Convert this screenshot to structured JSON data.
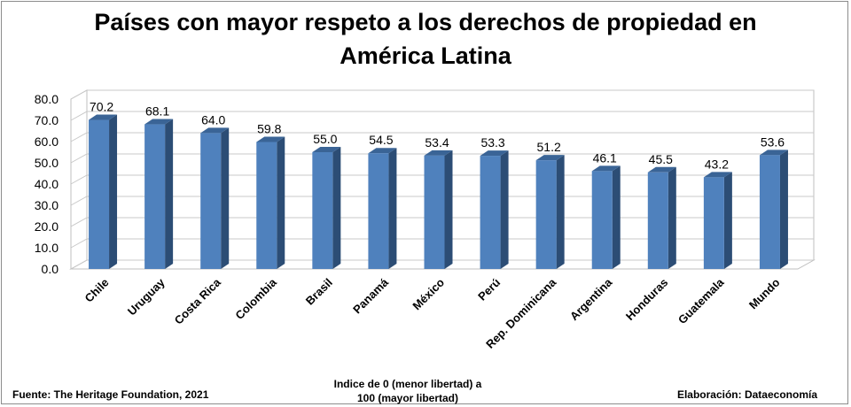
{
  "title_line1": "Países con mayor respeto a los derechos de propiedad en",
  "title_line2": "América Latina",
  "footer": {
    "source": "Fuente: The Heritage Foundation, 2021",
    "note_line1": "Indice de 0 (menor libertad) a",
    "note_line2": "100  (mayor libertad)",
    "credit": "Elaboración: Dataeconomía"
  },
  "colors": {
    "bar_front": "#4f81bd",
    "bar_side": "#2c4d75",
    "bar_top": "#3a6496",
    "grid": "#c8c8c8"
  },
  "chart_data": {
    "type": "bar",
    "title": "Países con mayor respeto a los derechos de propiedad en América Latina",
    "categories": [
      "Chile",
      "Uruguay",
      "Costa Rica",
      "Colombia",
      "Brasil",
      "Panamá",
      "México",
      "Perú",
      "Rep. Dominicana",
      "Argentina",
      "Honduras",
      "Guatemala",
      "Mundo"
    ],
    "values": [
      70.2,
      68.1,
      64.0,
      59.8,
      55.0,
      54.5,
      53.4,
      53.3,
      51.2,
      46.1,
      45.5,
      43.2,
      53.6
    ],
    "value_labels": [
      "70.2",
      "68.1",
      "64.0",
      "59.8",
      "55.0",
      "54.5",
      "53.4",
      "53.3",
      "51.2",
      "46.1",
      "45.5",
      "43.2",
      "53.6"
    ],
    "ylim": [
      0,
      80
    ],
    "yticks": [
      "0.0",
      "10.0",
      "20.0",
      "30.0",
      "40.0",
      "50.0",
      "60.0",
      "70.0",
      "80.0"
    ],
    "grid": true,
    "legend": "none",
    "style": "3d"
  }
}
